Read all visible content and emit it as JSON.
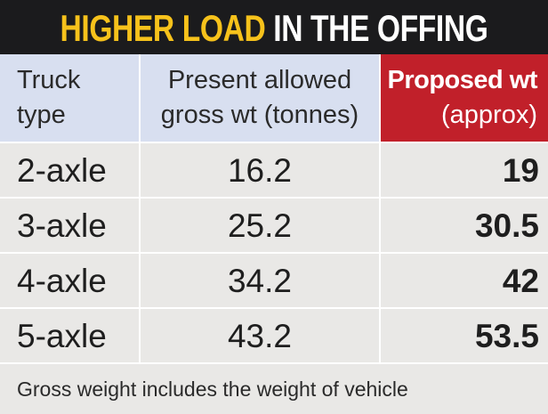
{
  "chart_data": {
    "type": "table",
    "title": {
      "highlight": "HIGHER LOAD",
      "rest": "IN THE OFFING"
    },
    "columns": [
      {
        "lines": [
          "Truck",
          "type"
        ]
      },
      {
        "lines": [
          "Present allowed",
          "gross wt (tonnes)"
        ]
      },
      {
        "lines": [
          "Proposed wt",
          "(approx)"
        ]
      }
    ],
    "rows": [
      {
        "truck": "2-axle",
        "present": "16.2",
        "proposed": "19"
      },
      {
        "truck": "3-axle",
        "present": "25.2",
        "proposed": "30.5"
      },
      {
        "truck": "4-axle",
        "present": "34.2",
        "proposed": "42"
      },
      {
        "truck": "5-axle",
        "present": "43.2",
        "proposed": "53.5"
      }
    ],
    "footnote": "Gross weight includes the weight of vehicle"
  },
  "colors": {
    "title_background": "#1b1b1d",
    "title_highlight": "#f7c21b",
    "header_background": "#d8dff0",
    "proposed_header_background": "#c1202a",
    "body_background": "#e9e8e6"
  }
}
